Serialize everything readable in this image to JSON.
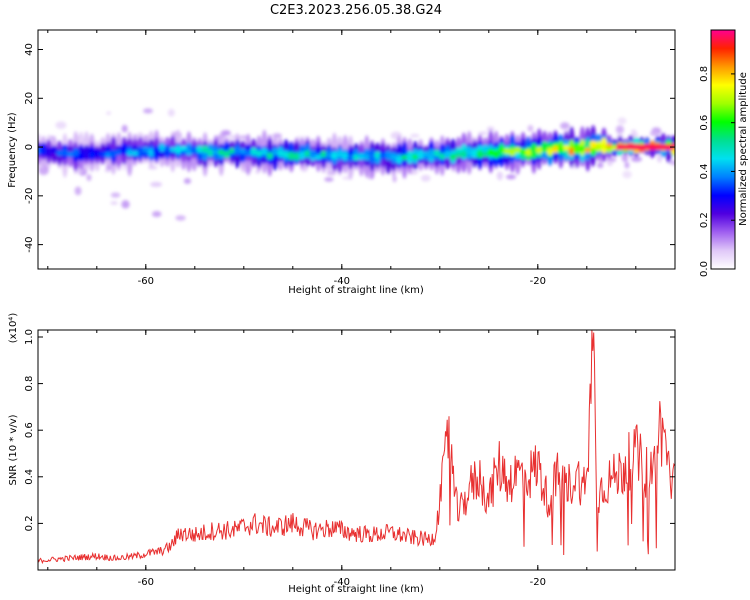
{
  "figure_title": "C2E3.2023.256.05.38.G24",
  "chart_data": [
    {
      "type": "heatmap",
      "xlabel": "Height of straight line (km)",
      "ylabel": "Frequency (Hz)",
      "xlim": [
        -71,
        -6
      ],
      "ylim": [
        -50,
        48
      ],
      "x_ticks": [
        -60,
        -40,
        -20
      ],
      "x_tick_labels": [
        "-60",
        "-40",
        "-20"
      ],
      "y_ticks": [
        -40,
        -20,
        0,
        20,
        40
      ],
      "y_tick_labels": [
        "-40",
        "-20",
        "0",
        "20",
        "40"
      ],
      "colorbar": {
        "label": "Normalized spectral amplitude",
        "range": [
          0,
          0.98
        ],
        "ticks": [
          0.0,
          0.2,
          0.4,
          0.6,
          0.8
        ],
        "tick_labels": [
          "0.0",
          "0.2",
          "0.4",
          "0.6",
          "0.8"
        ],
        "colormap": [
          "#ffffff",
          "#e0c8f8",
          "#a060f0",
          "#5000e0",
          "#0000ff",
          "#0080ff",
          "#00e0f0",
          "#00e090",
          "#00ff00",
          "#a0ff00",
          "#ffff00",
          "#ff9900",
          "#ff2200",
          "#ff0090"
        ]
      },
      "ridge": {
        "x": [
          -71,
          -66,
          -62,
          -58,
          -55,
          -52,
          -49,
          -46,
          -43,
          -40,
          -37,
          -34,
          -31,
          -28,
          -25,
          -22,
          -19,
          -16,
          -14,
          -12,
          -10,
          -8,
          -6
        ],
        "y": [
          -2,
          -3,
          -2,
          -1,
          -2,
          -2,
          -3,
          -3,
          -3,
          -4,
          -4,
          -4,
          -3,
          -3,
          -2,
          -2,
          -1,
          -1,
          0,
          0,
          0,
          0,
          0
        ],
        "amplitude": [
          0.35,
          0.35,
          0.4,
          0.4,
          0.45,
          0.5,
          0.45,
          0.5,
          0.5,
          0.45,
          0.45,
          0.5,
          0.55,
          0.55,
          0.6,
          0.65,
          0.75,
          0.8,
          0.85,
          0.9,
          0.92,
          0.95,
          0.95
        ]
      },
      "grid": false
    },
    {
      "type": "line",
      "xlabel": "Height of straight line (km)",
      "ylabel": "SNR (10 * v/v)",
      "y_scale_label": "(x10⁴)",
      "xlim": [
        -71,
        -6
      ],
      "ylim": [
        0,
        1.03
      ],
      "x_ticks": [
        -60,
        -40,
        -20
      ],
      "x_tick_labels": [
        "-60",
        "-40",
        "-20"
      ],
      "y_ticks": [
        0.2,
        0.4,
        0.6,
        0.8,
        1.0
      ],
      "y_tick_labels": [
        "0.2",
        "0.4",
        "0.6",
        "0.8",
        "1.0"
      ],
      "series": [
        {
          "color": "#e83030",
          "x": [
            -71,
            -68,
            -65,
            -63,
            -61,
            -60,
            -58.5,
            -57.5,
            -56.5,
            -55,
            -53,
            -51,
            -49,
            -47,
            -45,
            -43,
            -41,
            -39,
            -37,
            -35,
            -33,
            -31,
            -30.5,
            -29.5,
            -29,
            -28.5,
            -28,
            -27,
            -26,
            -25,
            -24,
            -23,
            -22,
            -21,
            -20,
            -19,
            -18,
            -17,
            -16,
            -15,
            -14.8,
            -14.5,
            -14.2,
            -14,
            -13.5,
            -13,
            -12,
            -11,
            -10,
            -9,
            -8,
            -7.5,
            -7,
            -6.5,
            -6
          ],
          "y": [
            0.04,
            0.05,
            0.06,
            0.05,
            0.06,
            0.07,
            0.08,
            0.1,
            0.16,
            0.15,
            0.17,
            0.17,
            0.2,
            0.18,
            0.2,
            0.17,
            0.18,
            0.16,
            0.15,
            0.16,
            0.14,
            0.13,
            0.15,
            0.44,
            0.65,
            0.3,
            0.24,
            0.35,
            0.4,
            0.3,
            0.45,
            0.38,
            0.42,
            0.4,
            0.45,
            0.3,
            0.4,
            0.36,
            0.4,
            0.35,
            0.55,
            1.02,
            0.8,
            0.3,
            0.35,
            0.38,
            0.4,
            0.45,
            0.5,
            0.42,
            0.45,
            0.62,
            0.55,
            0.4,
            0.36
          ]
        }
      ],
      "grid": false
    }
  ]
}
